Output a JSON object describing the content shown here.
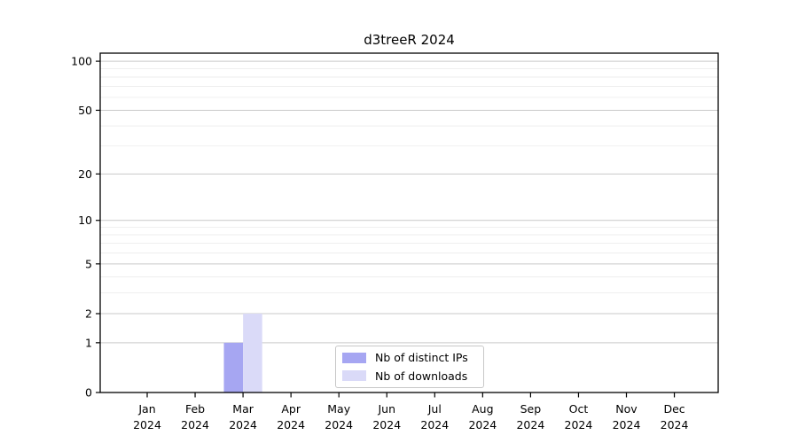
{
  "figure": {
    "background": "#ffffff"
  },
  "chart_data": {
    "type": "bar",
    "title": "d3treeR 2024",
    "categories": [
      "Jan",
      "Feb",
      "Mar",
      "Apr",
      "May",
      "Jun",
      "Jul",
      "Aug",
      "Sep",
      "Oct",
      "Nov",
      "Dec"
    ],
    "category_year": "2024",
    "series": [
      {
        "name": "Nb of distinct IPs",
        "color": "#a6a6f2",
        "values": [
          0,
          0,
          1,
          0,
          0,
          0,
          0,
          0,
          0,
          0,
          0,
          0
        ]
      },
      {
        "name": "Nb of downloads",
        "color": "#dadaf8",
        "values": [
          0,
          0,
          2,
          0,
          0,
          0,
          0,
          0,
          0,
          0,
          0,
          0
        ]
      }
    ],
    "xlabel": "",
    "ylabel": "",
    "yscale": "log1p",
    "ylim": [
      0,
      112
    ],
    "y_major_ticks": [
      0,
      1,
      2,
      5,
      10,
      20,
      50,
      100
    ],
    "y_minor_gridlines": [
      3,
      4,
      6,
      7,
      8,
      9,
      30,
      40,
      60,
      70,
      80,
      90
    ],
    "grid": "horizontal",
    "legend_position": "inside-bottom-center",
    "colors": {
      "major_grid": "#c9c9c9",
      "minor_grid": "#e8e8e8",
      "spine": "#000000",
      "tick_text": "#000000"
    }
  }
}
